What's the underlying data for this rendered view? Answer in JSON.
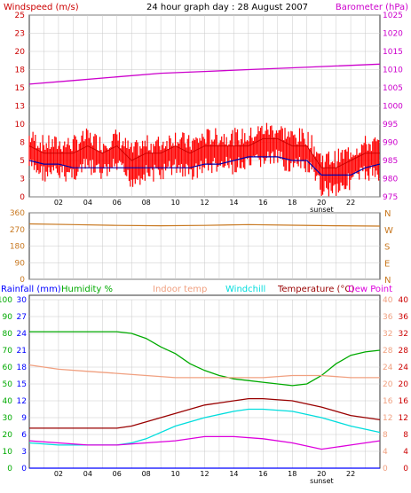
{
  "header": {
    "left": "Windspeed (m/s)",
    "center": "24 hour graph day : 28 August 2007",
    "right": "Barometer (hPa)"
  },
  "bottom_legend": {
    "rainfall": "Rainfall (mm)",
    "humidity": "Humidity %",
    "indoor": "Indoor temp",
    "windchill": "Windchill",
    "temperature": "Temperature (°C)",
    "dewpoint": "Dew Point"
  },
  "colors": {
    "grid": "#c8c8c8",
    "windspeed": "#cc0000",
    "windspeed_bar": "#ff0000",
    "wind_avg": "#0000aa",
    "barometer": "#cc00cc",
    "direction": "#c87820",
    "rainfall": "#0000ff",
    "humidity": "#00aa00",
    "indoor": "#f0a080",
    "windchill": "#00dddd",
    "temperature": "#990000",
    "dewpoint": "#dd00dd",
    "right_axis_temp": "#cc0000"
  },
  "chart_data": [
    {
      "type": "line",
      "title": "24 hour graph day : 28 August 2007",
      "x_tick_labels": [
        "02",
        "04",
        "06",
        "08",
        "10",
        "12",
        "14",
        "16",
        "18",
        "20",
        "22"
      ],
      "x_marker": "sunset",
      "xlim": [
        0,
        24
      ],
      "y_left": {
        "label": "Windspeed (m/s)",
        "ticks": [
          0,
          3,
          5,
          8,
          10,
          13,
          15,
          18,
          20,
          23,
          25
        ],
        "lim": [
          0,
          25
        ]
      },
      "y_right": {
        "label": "Barometer (hPa)",
        "ticks": [
          975,
          980,
          985,
          990,
          995,
          1000,
          1005,
          1010,
          1015,
          1020,
          1025
        ],
        "lim": [
          975,
          1025
        ]
      },
      "series": [
        {
          "name": "Windspeed",
          "axis": "left",
          "x": [
            0,
            1,
            2,
            3,
            4,
            5,
            6,
            7,
            8,
            9,
            10,
            11,
            12,
            13,
            14,
            15,
            16,
            17,
            18,
            19,
            20,
            21,
            22,
            23,
            24
          ],
          "values": [
            7,
            6,
            6,
            6,
            7,
            6,
            7,
            5,
            6,
            6,
            7,
            6,
            7,
            7,
            7,
            7,
            8,
            8,
            7,
            7,
            4,
            4,
            5,
            6,
            6
          ]
        },
        {
          "name": "Wind average",
          "axis": "left",
          "x": [
            0,
            1,
            2,
            3,
            4,
            5,
            6,
            7,
            8,
            9,
            10,
            11,
            12,
            13,
            14,
            15,
            16,
            17,
            18,
            19,
            20,
            21,
            22,
            23,
            24
          ],
          "values": [
            5,
            4.5,
            4.5,
            4,
            4,
            4,
            4,
            4,
            4,
            4,
            4,
            4,
            4.5,
            4.5,
            5,
            5.5,
            5.5,
            5.5,
            5,
            5,
            3,
            3,
            3,
            4,
            4.5
          ]
        },
        {
          "name": "Barometer",
          "axis": "right",
          "x": [
            0,
            3,
            6,
            9,
            12,
            15,
            18,
            21,
            24
          ],
          "values": [
            1006,
            1007,
            1008,
            1009,
            1009.5,
            1010,
            1010.5,
            1011,
            1011.5
          ]
        }
      ]
    },
    {
      "type": "line",
      "y_left": {
        "ticks": [
          0,
          90,
          180,
          270,
          360
        ],
        "lim": [
          0,
          360
        ]
      },
      "y_right": {
        "ticks": [
          "N",
          "E",
          "S",
          "W",
          "N"
        ]
      },
      "series": [
        {
          "name": "Wind direction",
          "x": [
            0,
            3,
            6,
            9,
            12,
            15,
            18,
            21,
            24
          ],
          "values": [
            300,
            296,
            292,
            290,
            292,
            296,
            293,
            290,
            288
          ]
        }
      ]
    },
    {
      "type": "line",
      "x_tick_labels": [
        "02",
        "04",
        "06",
        "08",
        "10",
        "12",
        "14",
        "16",
        "18",
        "20",
        "22"
      ],
      "x_marker": "sunset",
      "axes": {
        "rainfall": {
          "label": "Rainfall (mm)",
          "ticks": [
            0,
            3,
            6,
            9,
            12,
            15,
            18,
            21,
            24,
            27,
            30
          ],
          "lim": [
            0,
            30
          ]
        },
        "humidity": {
          "label": "Humidity %",
          "ticks": [
            0,
            10,
            20,
            30,
            40,
            50,
            60,
            70,
            80,
            90,
            100
          ],
          "lim": [
            0,
            100
          ]
        },
        "temp_left": {
          "ticks": [
            0,
            4,
            8,
            12,
            16,
            20,
            24,
            28,
            32,
            36,
            40
          ],
          "lim": [
            0,
            40
          ]
        },
        "temp_right": {
          "label": "Temperature (°C)",
          "ticks": [
            0,
            4,
            8,
            12,
            16,
            20,
            24,
            28,
            32,
            36,
            40
          ],
          "lim": [
            0,
            40
          ]
        }
      },
      "series": [
        {
          "name": "Humidity",
          "axis": "humidity",
          "x": [
            0,
            1,
            2,
            3,
            4,
            5,
            6,
            7,
            8,
            9,
            10,
            11,
            12,
            13,
            14,
            15,
            16,
            17,
            18,
            19,
            20,
            21,
            22,
            23,
            24
          ],
          "values": [
            81,
            81,
            81,
            81,
            81,
            81,
            81,
            80,
            77,
            72,
            68,
            62,
            58,
            55,
            53,
            52,
            51,
            50,
            49,
            50,
            55,
            62,
            67,
            69,
            70
          ]
        },
        {
          "name": "Indoor temp",
          "axis": "temp_left",
          "x": [
            0,
            2,
            4,
            6,
            8,
            10,
            12,
            14,
            16,
            18,
            20,
            22,
            24
          ],
          "values": [
            24.5,
            23.5,
            23,
            22.5,
            22,
            21.5,
            21.5,
            21.5,
            21.5,
            22,
            22,
            21.5,
            21.5
          ]
        },
        {
          "name": "Windchill",
          "axis": "temp_left",
          "x": [
            0,
            2,
            4,
            6,
            7,
            8,
            10,
            12,
            14,
            15,
            16,
            18,
            20,
            22,
            24
          ],
          "values": [
            6,
            5.5,
            5.5,
            5.5,
            6,
            7,
            10,
            12,
            13.5,
            14,
            14,
            13.5,
            12,
            10,
            8.5
          ]
        },
        {
          "name": "Temperature",
          "axis": "temp_left",
          "x": [
            0,
            2,
            4,
            6,
            7,
            8,
            10,
            12,
            14,
            15,
            16,
            18,
            20,
            22,
            24
          ],
          "values": [
            9.5,
            9.5,
            9.5,
            9.5,
            10,
            11,
            13,
            15,
            16,
            16.5,
            16.5,
            16,
            14.5,
            12.5,
            11.5
          ]
        },
        {
          "name": "Dew Point",
          "axis": "temp_left",
          "x": [
            0,
            2,
            4,
            6,
            8,
            10,
            12,
            14,
            16,
            18,
            20,
            22,
            24
          ],
          "values": [
            6.5,
            6,
            5.5,
            5.5,
            6,
            6.5,
            7.5,
            7.5,
            7,
            6,
            4.5,
            5.5,
            6.5
          ]
        },
        {
          "name": "Rainfall",
          "axis": "rainfall",
          "x": [
            0,
            24
          ],
          "values": [
            0,
            0
          ]
        }
      ]
    }
  ]
}
